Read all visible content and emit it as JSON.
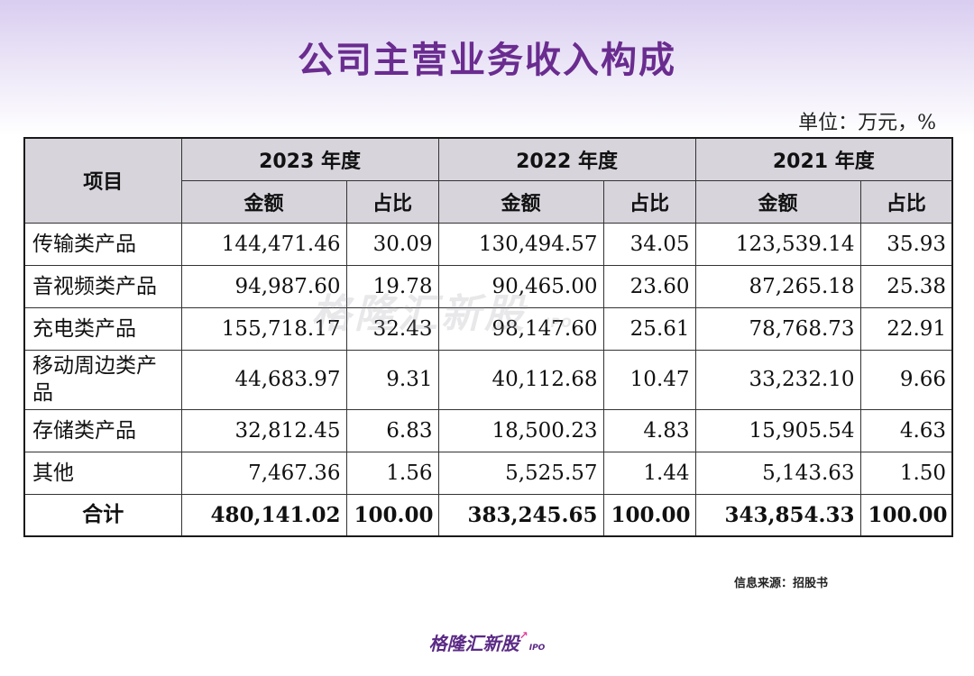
{
  "title": "公司主营业务收入构成",
  "unit": "单位：万元，%",
  "table": {
    "item_header": "项目",
    "years": [
      "2023 年度",
      "2022 年度",
      "2021 年度"
    ],
    "sub_headers": {
      "amount": "金额",
      "ratio": "占比"
    },
    "rows": [
      {
        "item": "传输类产品",
        "v": [
          "144,471.46",
          "30.09",
          "130,494.57",
          "34.05",
          "123,539.14",
          "35.93"
        ]
      },
      {
        "item": "音视频类产品",
        "v": [
          "94,987.60",
          "19.78",
          "90,465.00",
          "23.60",
          "87,265.18",
          "25.38"
        ]
      },
      {
        "item": "充电类产品",
        "v": [
          "155,718.17",
          "32.43",
          "98,147.60",
          "25.61",
          "78,768.73",
          "22.91"
        ]
      },
      {
        "item": "移动周边类产品",
        "v": [
          "44,683.97",
          "9.31",
          "40,112.68",
          "10.47",
          "33,232.10",
          "9.66"
        ]
      },
      {
        "item": "存储类产品",
        "v": [
          "32,812.45",
          "6.83",
          "18,500.23",
          "4.83",
          "15,905.54",
          "4.63"
        ]
      },
      {
        "item": "其他",
        "v": [
          "7,467.36",
          "1.56",
          "5,525.57",
          "1.44",
          "5,143.63",
          "1.50"
        ]
      }
    ],
    "total": {
      "item": "合计",
      "v": [
        "480,141.02",
        "100.00",
        "383,245.65",
        "100.00",
        "343,854.33",
        "100.00"
      ]
    }
  },
  "source": "信息来源：招股书",
  "watermark": {
    "text": "格隆汇新股",
    "suffix": "IPO"
  },
  "logo": {
    "text": "格隆汇新股",
    "suffix": "IPO"
  },
  "colors": {
    "title": "#6a2c8f",
    "header_bg": "#d7d4dc",
    "logo": "#5b2a86"
  }
}
